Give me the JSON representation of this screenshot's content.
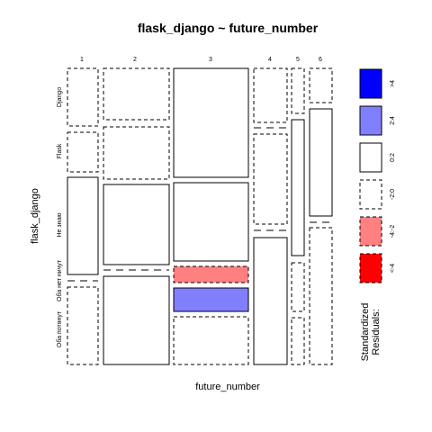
{
  "chart_data": {
    "type": "mosaic",
    "title": "flask_django ~ future_number",
    "xlabel": "future_number",
    "ylabel": "flask_django",
    "x_categories": [
      "1",
      "2",
      "3",
      "4",
      "5",
      "6"
    ],
    "y_categories": [
      "Django",
      "Flask",
      "Не знаю",
      "Оба нет ничут",
      "Оба потянут"
    ],
    "cells": [
      {
        "x": "1",
        "y": "Django",
        "residual": "<-2..0"
      },
      {
        "x": "1",
        "y": "Flask",
        "residual": "<-2..0"
      },
      {
        "x": "1",
        "y": "Не знаю",
        "residual": "0..2"
      },
      {
        "x": "1",
        "y": "Оба нет ничут",
        "residual": "-2..0"
      },
      {
        "x": "1",
        "y": "Оба потянут",
        "residual": "-2..0"
      },
      {
        "x": "2",
        "y": "Django",
        "residual": "-2..0"
      },
      {
        "x": "2",
        "y": "Flask",
        "residual": "-2..0"
      },
      {
        "x": "2",
        "y": "Не знаю",
        "residual": "0..2"
      },
      {
        "x": "2",
        "y": "Оба нет ничут",
        "residual": "-2..0"
      },
      {
        "x": "2",
        "y": "Оба потянут",
        "residual": "0..2"
      },
      {
        "x": "3",
        "y": "Django",
        "residual": "0..2"
      },
      {
        "x": "3",
        "y": "Flask",
        "residual": "0..2"
      },
      {
        "x": "3",
        "y": "Не знаю",
        "residual": "-4..-2"
      },
      {
        "x": "3",
        "y": "Оба нет ничут",
        "residual": "2..4"
      },
      {
        "x": "3",
        "y": "Оба потянут",
        "residual": "-2..0"
      },
      {
        "x": "4",
        "y": "Django",
        "residual": "-2..0"
      },
      {
        "x": "4",
        "y": "Flask",
        "residual": "-2..0"
      },
      {
        "x": "4",
        "y": "Не знаю",
        "residual": "0..2"
      },
      {
        "x": "4",
        "y": "Оба нет ничут",
        "residual": "-2..0"
      },
      {
        "x": "4",
        "y": "Оба потянут",
        "residual": "0..2"
      },
      {
        "x": "5",
        "y": "Django",
        "residual": "-2..0"
      },
      {
        "x": "5",
        "y": "Flask",
        "residual": "0..2"
      },
      {
        "x": "5",
        "y": "Не знаю",
        "residual": "-2..0"
      },
      {
        "x": "5",
        "y": "Оба потянут",
        "residual": "-2..0"
      },
      {
        "x": "6",
        "y": "Django",
        "residual": "-2..0"
      },
      {
        "x": "6",
        "y": "Flask",
        "residual": "0..2"
      },
      {
        "x": "6",
        "y": "Не знаю",
        "residual": "-2..0"
      },
      {
        "x": "6",
        "y": "Оба потянут",
        "residual": "0..2"
      }
    ],
    "legend": {
      "title_line1": "Standardized",
      "title_line2": "Residuals:",
      "items": [
        {
          "label": ">4",
          "fill": "#0000ff",
          "dashed": false
        },
        {
          "label": "2:4",
          "fill": "#8080ff",
          "dashed": false
        },
        {
          "label": "0:2",
          "fill": "#ffffff",
          "dashed": false
        },
        {
          "label": "-2:0",
          "fill": "#ffffff",
          "dashed": true
        },
        {
          "label": "-4:-2",
          "fill": "#ff8080",
          "dashed": true
        },
        {
          "label": "<-4",
          "fill": "#ff0000",
          "dashed": true
        }
      ]
    }
  }
}
